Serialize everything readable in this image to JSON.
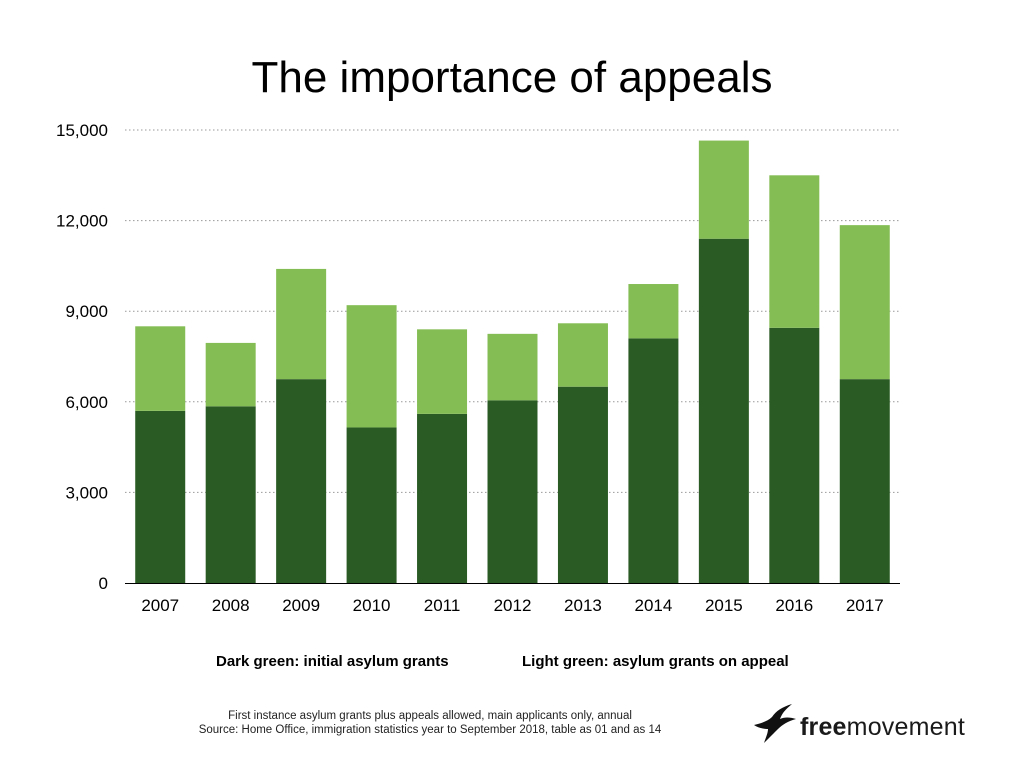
{
  "header": {
    "title": "The importance of appeals"
  },
  "legend": {
    "dark_label": "Dark green: initial asylum grants",
    "light_label": "Light green: asylum grants on appeal"
  },
  "footer": {
    "source_line1": "First instance asylum grants plus appeals allowed, main applicants only, annual",
    "source_line2": "Source: Home Office, immigration statistics year to September 2018, table as 01 and as 14"
  },
  "logo": {
    "bold": "free",
    "regular": "movement",
    "icon": "bird-icon"
  },
  "colors": {
    "dark": "#2b5b25",
    "light": "#85bd55",
    "grid": "#999999"
  },
  "chart_data": {
    "type": "bar",
    "stacked": true,
    "title": "The importance of appeals",
    "categories": [
      "2007",
      "2008",
      "2009",
      "2010",
      "2011",
      "2012",
      "2013",
      "2014",
      "2015",
      "2016",
      "2017"
    ],
    "series": [
      {
        "name": "Dark green: initial asylum grants",
        "values": [
          5700,
          5850,
          6750,
          5150,
          5600,
          6050,
          6500,
          8100,
          11400,
          8450,
          6750
        ]
      },
      {
        "name": "Light green: asylum grants on appeal",
        "values": [
          2800,
          2100,
          3650,
          4050,
          2800,
          2200,
          2100,
          1800,
          3250,
          5050,
          5100
        ]
      }
    ],
    "ylim": [
      0,
      15000
    ],
    "yticks": [
      0,
      3000,
      6000,
      9000,
      12000,
      15000
    ],
    "ytick_labels": [
      "0",
      "3,000",
      "6,000",
      "9,000",
      "12,000",
      "15,000"
    ],
    "grid": true,
    "legend_position": "bottom"
  }
}
